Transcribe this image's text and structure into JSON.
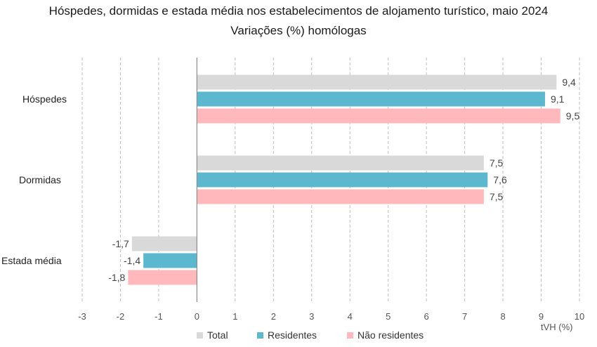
{
  "chart_data": {
    "type": "bar",
    "orientation": "horizontal",
    "title": "Hóspedes, dormidas e estada média nos estabelecimentos de alojamento turístico, maio 2024",
    "subtitle": "Variações (%) homólogas",
    "categories": [
      "Hóspedes",
      "Dormidas",
      "Estada média"
    ],
    "series": [
      {
        "name": "Total",
        "color": "#d9d9d9",
        "values": [
          9.4,
          7.5,
          -1.7
        ],
        "labels": [
          "9,4",
          "7,5",
          "-1,7"
        ]
      },
      {
        "name": "Residentes",
        "color": "#5bb8cf",
        "values": [
          9.1,
          7.6,
          -1.4
        ],
        "labels": [
          "9,1",
          "7,6",
          "-1,4"
        ]
      },
      {
        "name": "Não residentes",
        "color": "#ffb9bd",
        "values": [
          9.5,
          7.5,
          -1.8
        ],
        "labels": [
          "9,5",
          "7,5",
          "-1,8"
        ]
      }
    ],
    "xlim": [
      -3,
      10
    ],
    "x_ticks": [
      -3,
      -2,
      -1,
      0,
      1,
      2,
      3,
      4,
      5,
      6,
      7,
      8,
      9,
      10
    ],
    "xlabel": "tVH (%)",
    "grid": "vertical-dashed",
    "legend": "bottom"
  }
}
